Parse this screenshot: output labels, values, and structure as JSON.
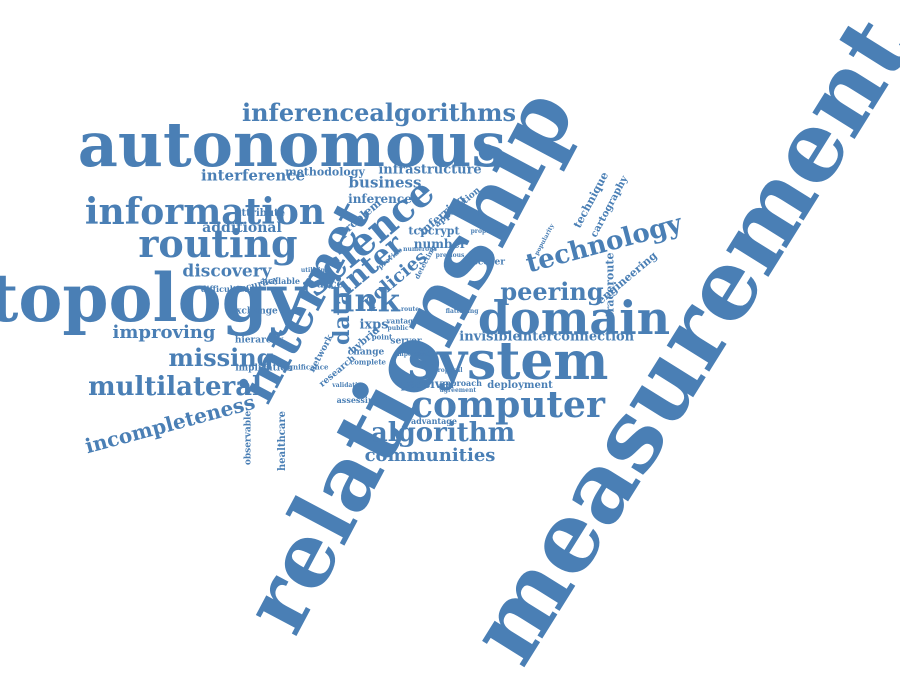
{
  "words": {
    "measurement": "measurement",
    "relationship": "relationship",
    "autonomous": "autonomous",
    "topology": "topology",
    "system": "system",
    "internet": "internet",
    "domain": "domain",
    "routing": "routing",
    "information": "information",
    "computer": "computer",
    "science": "science",
    "inferencealgorithms": "inferencealgorithms",
    "technology": "technology",
    "multilateral": "multilateral",
    "algorithm": "algorithm",
    "link": "link",
    "missing": "missing",
    "peering": "peering",
    "incompleteness": "incompleteness",
    "inter": "inter",
    "improving": "improving",
    "discovery": "discovery",
    "communities": "communities",
    "interference": "interference",
    "business": "business",
    "infrastructure": "infrastructure",
    "additional": "additional",
    "inference": "inference",
    "methodology": "methodology",
    "data": "data",
    "policies": "policies",
    "ixps": "ixps",
    "invisible": "invisible",
    "interconnection": "interconnection",
    "passive": "passive",
    "deployment": "deployment",
    "source": "source",
    "number": "number",
    "tcpcrypt": "tcpcrypt",
    "inferring": "inferring",
    "application": "application",
    "attribute": "attribute",
    "exchange": "exchange",
    "hierarchy": "hierarchy",
    "implication": "implication",
    "assessing": "assessing",
    "healthcare": "healthcare",
    "observable": "observable",
    "difficulties": "difficulties",
    "accuracy": "accuracy",
    "available": "available",
    "engineering": "engineering",
    "traceroute": "traceroute",
    "cartography": "cartography",
    "technique": "technique",
    "problem": "problem",
    "discover": "discover",
    "hybrid": "hybrid",
    "server": "server",
    "change": "change",
    "research": "research",
    "network": "network",
    "approach": "approach",
    "advantage": "advantage",
    "vantage": "vantage",
    "point": "point",
    "complete": "complete",
    "significance": "significance",
    "validation": "validation",
    "popularity": "popularity",
    "properties": "properties",
    "previous": "previous",
    "important": "important",
    "agreement": "agreement",
    "provide": "provide",
    "detecting": "detecting",
    "numerous": "numerous",
    "utilizing": "utilizing",
    "public": "public",
    "route": "route",
    "flattening": "flattening",
    "proposal": "proposal"
  }
}
